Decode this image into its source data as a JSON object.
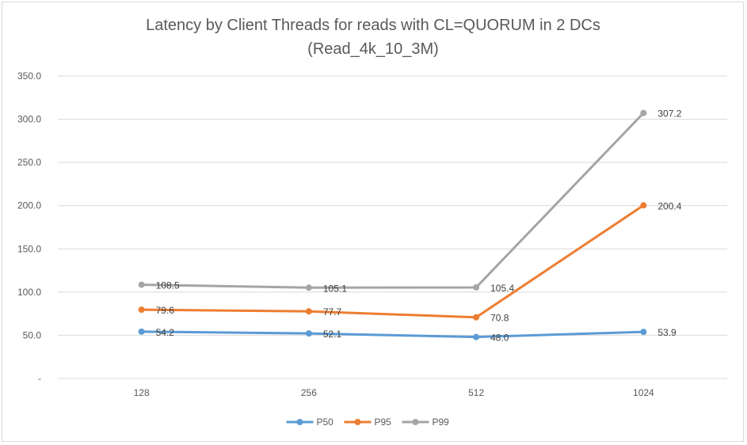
{
  "chart_data": {
    "type": "line",
    "title": "Latency by Client Threads for reads with CL=QUORUM in 2 DCs",
    "subtitle": "(Read_4k_10_3M)",
    "xlabel": "",
    "ylabel": "",
    "categories": [
      "128",
      "256",
      "512",
      "1024"
    ],
    "ylim": [
      0,
      350
    ],
    "y_ticks": [
      {
        "value": 0,
        "label": "-"
      },
      {
        "value": 50,
        "label": "50.0"
      },
      {
        "value": 100,
        "label": "100.0"
      },
      {
        "value": 150,
        "label": "150.0"
      },
      {
        "value": 200,
        "label": "200.0"
      },
      {
        "value": 250,
        "label": "250.0"
      },
      {
        "value": 300,
        "label": "300.0"
      },
      {
        "value": 350,
        "label": "350.0"
      }
    ],
    "grid": true,
    "legend_position": "bottom",
    "series": [
      {
        "name": "P50",
        "color": "#5b9bd5",
        "values": [
          54.2,
          52.1,
          48.0,
          53.9
        ],
        "labels": [
          "54.2",
          "52.1",
          "48.0",
          "53.9"
        ]
      },
      {
        "name": "P95",
        "color": "#ed7d31",
        "values": [
          79.6,
          77.7,
          70.8,
          200.4
        ],
        "labels": [
          "79.6",
          "77.7",
          "70.8",
          "200.4"
        ]
      },
      {
        "name": "P99",
        "color": "#a5a5a5",
        "values": [
          108.5,
          105.1,
          105.4,
          307.2
        ],
        "labels": [
          "108.5",
          "105.1",
          "105.4",
          "307.2"
        ]
      }
    ]
  }
}
